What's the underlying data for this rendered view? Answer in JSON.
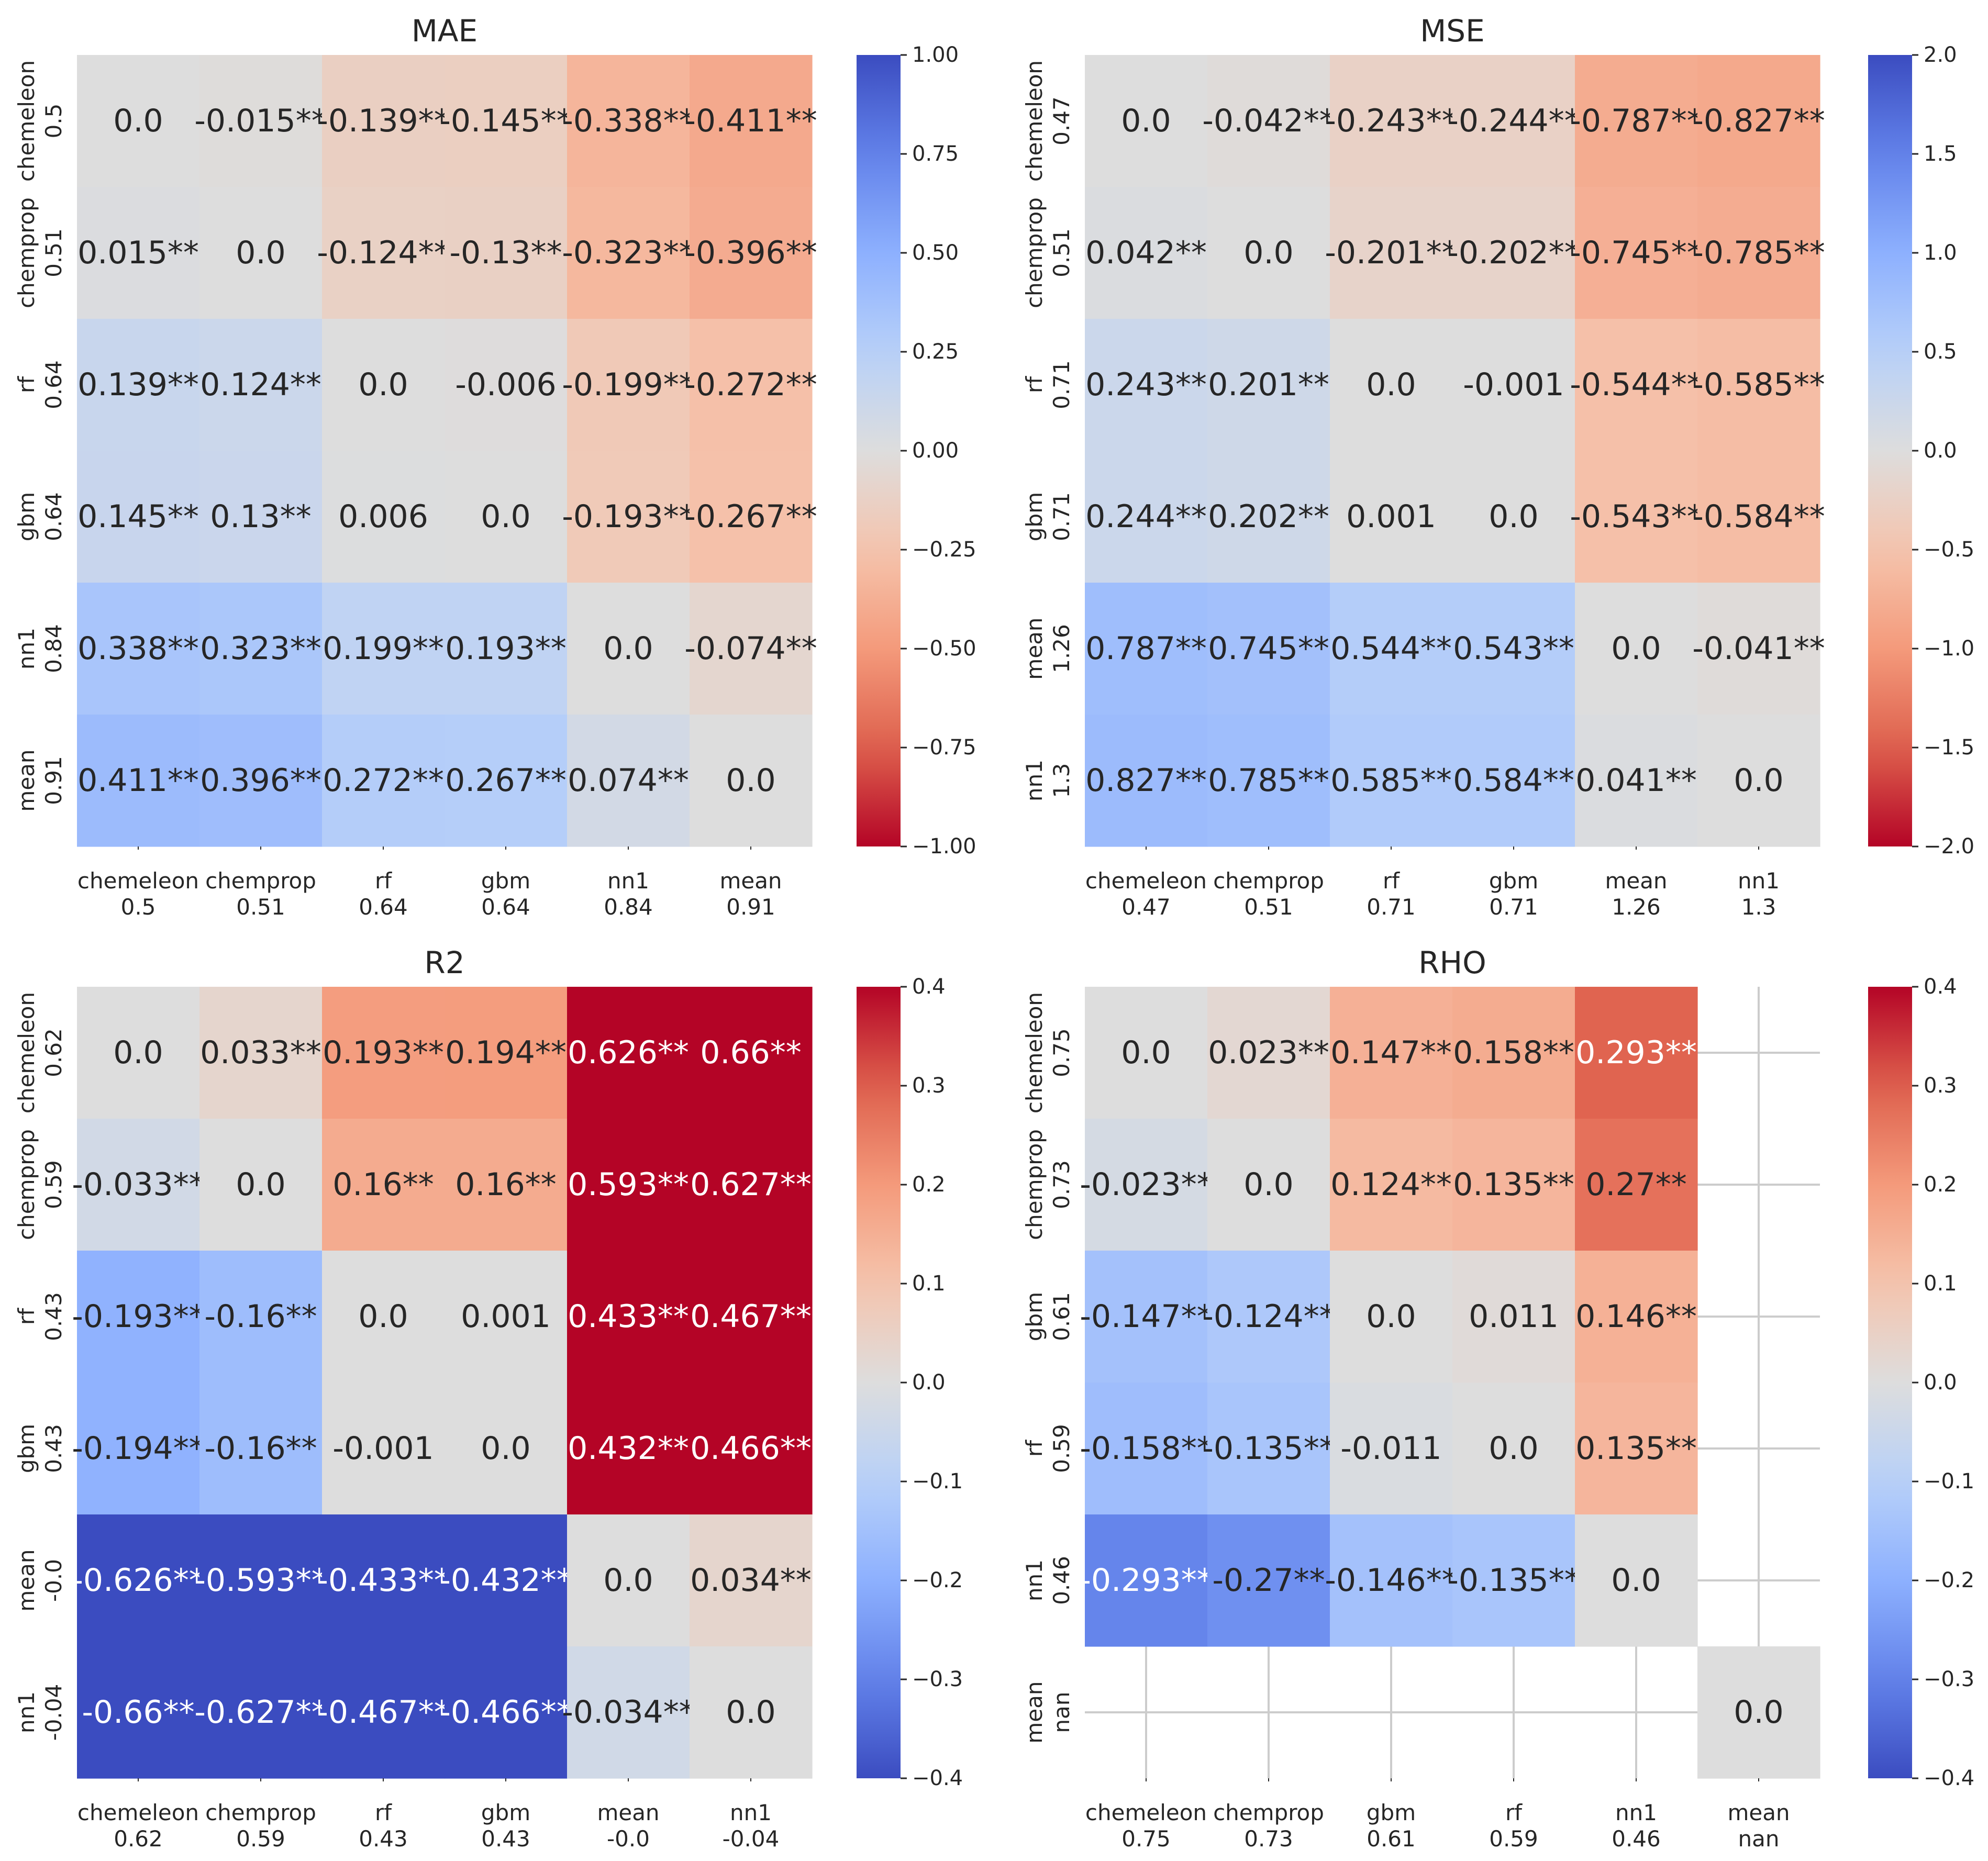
{
  "chart_data": [
    {
      "type": "heatmap",
      "title": "MAE",
      "categories": [
        "chemeleon",
        "chemprop",
        "rf",
        "gbm",
        "nn1",
        "mean"
      ],
      "scores": [
        "0.5",
        "0.51",
        "0.64",
        "0.64",
        "0.84",
        "0.91"
      ],
      "vmin": -1.0,
      "vmax": 1.0,
      "cmap": "coolwarm_r",
      "colorbar_ticks": [
        "1.00",
        "0.75",
        "0.50",
        "0.25",
        "0.00",
        "−0.25",
        "−0.50",
        "−0.75",
        "−1.00"
      ],
      "values": [
        [
          0.0,
          -0.015,
          -0.139,
          -0.145,
          -0.338,
          -0.411
        ],
        [
          0.015,
          0.0,
          -0.124,
          -0.13,
          -0.323,
          -0.396
        ],
        [
          0.139,
          0.124,
          0.0,
          -0.006,
          -0.199,
          -0.272
        ],
        [
          0.145,
          0.13,
          0.006,
          0.0,
          -0.193,
          -0.267
        ],
        [
          0.338,
          0.323,
          0.199,
          0.193,
          0.0,
          -0.074
        ],
        [
          0.411,
          0.396,
          0.272,
          0.267,
          0.074,
          0.0
        ]
      ],
      "labels": [
        [
          "0.0",
          "-0.015**",
          "-0.139**",
          "-0.145**",
          "-0.338**",
          "-0.411**"
        ],
        [
          "0.015**",
          "0.0",
          "-0.124**",
          "-0.13**",
          "-0.323**",
          "-0.396**"
        ],
        [
          "0.139**",
          "0.124**",
          "0.0",
          "-0.006",
          "-0.199**",
          "-0.272**"
        ],
        [
          "0.145**",
          "0.13**",
          "0.006",
          "0.0",
          "-0.193**",
          "-0.267**"
        ],
        [
          "0.338**",
          "0.323**",
          "0.199**",
          "0.193**",
          "0.0",
          "-0.074**"
        ],
        [
          "0.411**",
          "0.396**",
          "0.272**",
          "0.267**",
          "0.074**",
          "0.0"
        ]
      ]
    },
    {
      "type": "heatmap",
      "title": "MSE",
      "categories": [
        "chemeleon",
        "chemprop",
        "rf",
        "gbm",
        "mean",
        "nn1"
      ],
      "scores": [
        "0.47",
        "0.51",
        "0.71",
        "0.71",
        "1.26",
        "1.3"
      ],
      "vmin": -2.0,
      "vmax": 2.0,
      "cmap": "coolwarm_r",
      "colorbar_ticks": [
        "2.0",
        "1.5",
        "1.0",
        "0.5",
        "0.0",
        "−0.5",
        "−1.0",
        "−1.5",
        "−2.0"
      ],
      "values": [
        [
          0.0,
          -0.042,
          -0.243,
          -0.244,
          -0.787,
          -0.827
        ],
        [
          0.042,
          0.0,
          -0.201,
          -0.202,
          -0.745,
          -0.785
        ],
        [
          0.243,
          0.201,
          0.0,
          -0.001,
          -0.544,
          -0.585
        ],
        [
          0.244,
          0.202,
          0.001,
          0.0,
          -0.543,
          -0.584
        ],
        [
          0.787,
          0.745,
          0.544,
          0.543,
          0.0,
          -0.041
        ],
        [
          0.827,
          0.785,
          0.585,
          0.584,
          0.041,
          0.0
        ]
      ],
      "labels": [
        [
          "0.0",
          "-0.042**",
          "-0.243**",
          "-0.244**",
          "-0.787**",
          "-0.827**"
        ],
        [
          "0.042**",
          "0.0",
          "-0.201**",
          "-0.202**",
          "-0.745**",
          "-0.785**"
        ],
        [
          "0.243**",
          "0.201**",
          "0.0",
          "-0.001",
          "-0.544**",
          "-0.585**"
        ],
        [
          "0.244**",
          "0.202**",
          "0.001",
          "0.0",
          "-0.543**",
          "-0.584**"
        ],
        [
          "0.787**",
          "0.745**",
          "0.544**",
          "0.543**",
          "0.0",
          "-0.041**"
        ],
        [
          "0.827**",
          "0.785**",
          "0.585**",
          "0.584**",
          "0.041**",
          "0.0"
        ]
      ]
    },
    {
      "type": "heatmap",
      "title": "R2",
      "categories": [
        "chemeleon",
        "chemprop",
        "rf",
        "gbm",
        "mean",
        "nn1"
      ],
      "scores": [
        "0.62",
        "0.59",
        "0.43",
        "0.43",
        "-0.0",
        "-0.04"
      ],
      "vmin": -0.4,
      "vmax": 0.4,
      "cmap": "coolwarm",
      "colorbar_ticks": [
        "0.4",
        "0.3",
        "0.2",
        "0.1",
        "0.0",
        "−0.1",
        "−0.2",
        "−0.3",
        "−0.4"
      ],
      "values": [
        [
          0.0,
          0.033,
          0.193,
          0.194,
          0.626,
          0.66
        ],
        [
          -0.033,
          0.0,
          0.16,
          0.16,
          0.593,
          0.627
        ],
        [
          -0.193,
          -0.16,
          0.0,
          0.001,
          0.433,
          0.467
        ],
        [
          -0.194,
          -0.16,
          -0.001,
          0.0,
          0.432,
          0.466
        ],
        [
          -0.626,
          -0.593,
          -0.433,
          -0.432,
          0.0,
          0.034
        ],
        [
          -0.66,
          -0.627,
          -0.467,
          -0.466,
          -0.034,
          0.0
        ]
      ],
      "labels": [
        [
          "0.0",
          "0.033**",
          "0.193**",
          "0.194**",
          "0.626**",
          "0.66**"
        ],
        [
          "-0.033**",
          "0.0",
          "0.16**",
          "0.16**",
          "0.593**",
          "0.627**"
        ],
        [
          "-0.193**",
          "-0.16**",
          "0.0",
          "0.001",
          "0.433**",
          "0.467**"
        ],
        [
          "-0.194**",
          "-0.16**",
          "-0.001",
          "0.0",
          "0.432**",
          "0.466**"
        ],
        [
          "-0.626**",
          "-0.593**",
          "-0.433**",
          "-0.432**",
          "0.0",
          "0.034**"
        ],
        [
          "-0.66**",
          "-0.627**",
          "-0.467**",
          "-0.466**",
          "-0.034**",
          "0.0"
        ]
      ]
    },
    {
      "type": "heatmap",
      "title": "RHO",
      "categories": [
        "chemeleon",
        "chemprop",
        "gbm",
        "rf",
        "nn1",
        "mean"
      ],
      "scores": [
        "0.75",
        "0.73",
        "0.61",
        "0.59",
        "0.46",
        "nan"
      ],
      "vmin": -0.4,
      "vmax": 0.4,
      "cmap": "coolwarm",
      "colorbar_ticks": [
        "0.4",
        "0.3",
        "0.2",
        "0.1",
        "0.0",
        "−0.1",
        "−0.2",
        "−0.3",
        "−0.4"
      ],
      "values": [
        [
          0.0,
          0.023,
          0.147,
          0.158,
          0.293,
          null
        ],
        [
          -0.023,
          0.0,
          0.124,
          0.135,
          0.27,
          null
        ],
        [
          -0.147,
          -0.124,
          0.0,
          0.011,
          0.146,
          null
        ],
        [
          -0.158,
          -0.135,
          -0.011,
          0.0,
          0.135,
          null
        ],
        [
          -0.293,
          -0.27,
          -0.146,
          -0.135,
          0.0,
          null
        ],
        [
          null,
          null,
          null,
          null,
          null,
          0.0
        ]
      ],
      "labels": [
        [
          "0.0",
          "0.023**",
          "0.147**",
          "0.158**",
          "0.293**",
          ""
        ],
        [
          "-0.023**",
          "0.0",
          "0.124**",
          "0.135**",
          "0.27**",
          ""
        ],
        [
          "-0.147**",
          "-0.124**",
          "0.0",
          "0.011",
          "0.146**",
          ""
        ],
        [
          "-0.158**",
          "-0.135**",
          "-0.011",
          "0.0",
          "0.135**",
          ""
        ],
        [
          "-0.293**",
          "-0.27**",
          "-0.146**",
          "-0.135**",
          "0.0",
          ""
        ],
        [
          "",
          "",
          "",
          "",
          "",
          "0.0"
        ]
      ]
    }
  ]
}
